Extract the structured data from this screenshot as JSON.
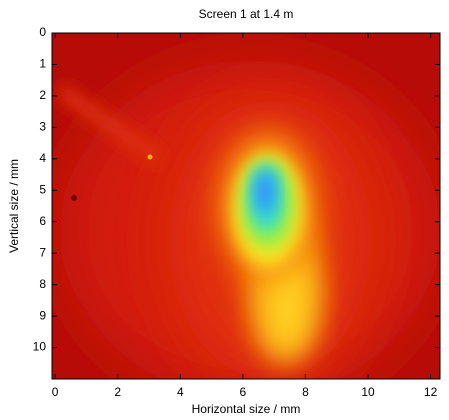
{
  "chart_data": {
    "type": "image",
    "title": "Screen 1 at 1.4 m",
    "x_label": "Horizontal size / mm",
    "y_label": "Vertical size / mm",
    "xlim": [
      -0.1,
      12.3
    ],
    "ylim": [
      0,
      11
    ],
    "xticks": [
      0,
      2,
      4,
      6,
      8,
      10,
      12
    ],
    "yticks": [
      0,
      1,
      2,
      3,
      4,
      5,
      6,
      7,
      8,
      9,
      10
    ],
    "y_reversed": true
  }
}
